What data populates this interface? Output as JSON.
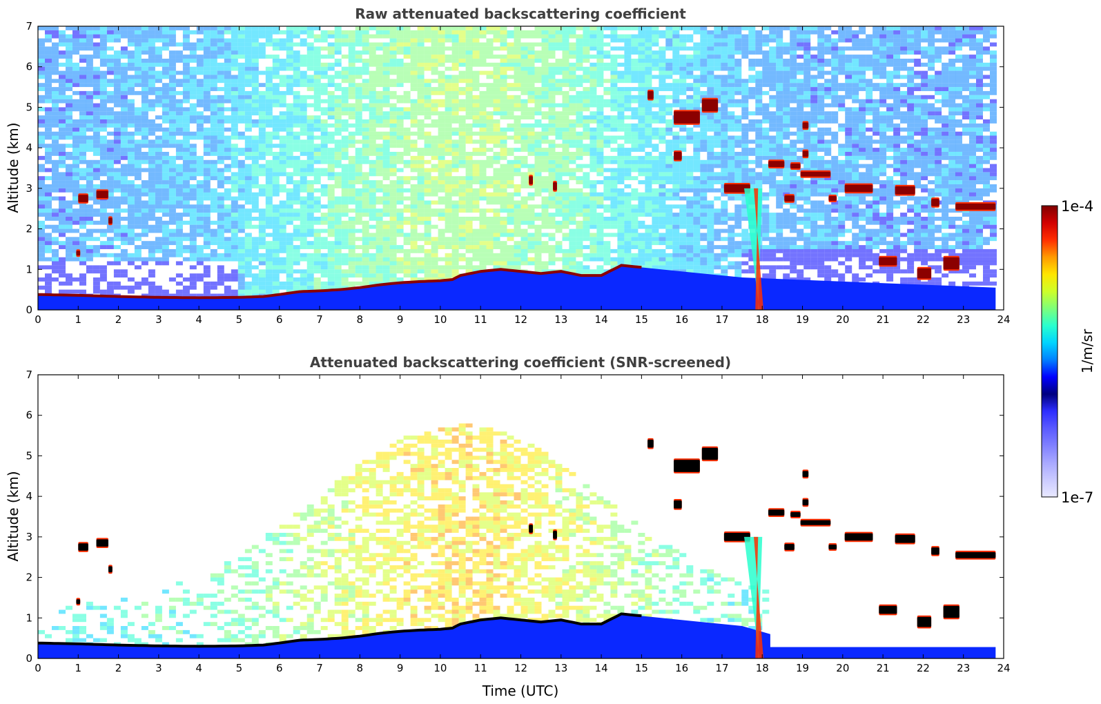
{
  "chart_data": [
    {
      "type": "heatmap",
      "title": "Raw attenuated backscattering coefficient",
      "xlabel": "",
      "ylabel": "Altitude (km)",
      "xlim": [
        0,
        24
      ],
      "ylim": [
        0,
        7
      ],
      "x_ticks": [
        "0",
        "1",
        "2",
        "3",
        "4",
        "5",
        "6",
        "7",
        "8",
        "9",
        "10",
        "11",
        "12",
        "13",
        "14",
        "15",
        "16",
        "17",
        "18",
        "19",
        "20",
        "21",
        "22",
        "23",
        "24"
      ],
      "y_ticks": [
        "0",
        "1",
        "2",
        "3",
        "4",
        "5",
        "6",
        "7"
      ],
      "screening": "none",
      "boundary_layer_top_km": [
        [
          0,
          0.38
        ],
        [
          1,
          0.36
        ],
        [
          2,
          0.33
        ],
        [
          3,
          0.31
        ],
        [
          4,
          0.3
        ],
        [
          5,
          0.31
        ],
        [
          5.6,
          0.33
        ],
        [
          6,
          0.38
        ],
        [
          6.5,
          0.45
        ],
        [
          7,
          0.47
        ],
        [
          7.5,
          0.5
        ],
        [
          8,
          0.55
        ],
        [
          8.5,
          0.62
        ],
        [
          9,
          0.67
        ],
        [
          9.5,
          0.7
        ],
        [
          10,
          0.72
        ],
        [
          10.3,
          0.75
        ],
        [
          10.5,
          0.85
        ],
        [
          11,
          0.95
        ],
        [
          11.5,
          1.0
        ],
        [
          12,
          0.95
        ],
        [
          12.5,
          0.9
        ],
        [
          13,
          0.95
        ],
        [
          13.5,
          0.85
        ],
        [
          14,
          0.85
        ],
        [
          14.5,
          1.1
        ],
        [
          15,
          1.05
        ]
      ],
      "cloud_layers": [
        {
          "x0": 1.0,
          "x1": 1.25,
          "alt_km": 2.75,
          "thickness_km": 0.18
        },
        {
          "x0": 1.45,
          "x1": 1.75,
          "alt_km": 2.85,
          "thickness_km": 0.18
        },
        {
          "x0": 1.75,
          "x1": 1.85,
          "alt_km": 2.2,
          "thickness_km": 0.15
        },
        {
          "x0": 0.95,
          "x1": 1.05,
          "alt_km": 1.4,
          "thickness_km": 0.12
        },
        {
          "x0": 12.2,
          "x1": 12.3,
          "alt_km": 3.2,
          "thickness_km": 0.2
        },
        {
          "x0": 12.8,
          "x1": 12.9,
          "alt_km": 3.05,
          "thickness_km": 0.2
        },
        {
          "x0": 15.15,
          "x1": 15.3,
          "alt_km": 5.3,
          "thickness_km": 0.2
        },
        {
          "x0": 15.8,
          "x1": 16.45,
          "alt_km": 4.75,
          "thickness_km": 0.3
        },
        {
          "x0": 16.5,
          "x1": 16.9,
          "alt_km": 5.05,
          "thickness_km": 0.3
        },
        {
          "x0": 15.8,
          "x1": 16.0,
          "alt_km": 3.8,
          "thickness_km": 0.2
        },
        {
          "x0": 17.05,
          "x1": 17.7,
          "alt_km": 3.0,
          "thickness_km": 0.2
        },
        {
          "x0": 18.15,
          "x1": 18.55,
          "alt_km": 3.6,
          "thickness_km": 0.15
        },
        {
          "x0": 18.7,
          "x1": 18.95,
          "alt_km": 3.55,
          "thickness_km": 0.12
        },
        {
          "x0": 18.95,
          "x1": 19.7,
          "alt_km": 3.35,
          "thickness_km": 0.12
        },
        {
          "x0": 19.0,
          "x1": 19.15,
          "alt_km": 4.55,
          "thickness_km": 0.15
        },
        {
          "x0": 19.0,
          "x1": 19.15,
          "alt_km": 3.85,
          "thickness_km": 0.15
        },
        {
          "x0": 18.55,
          "x1": 18.8,
          "alt_km": 2.75,
          "thickness_km": 0.15
        },
        {
          "x0": 19.65,
          "x1": 19.85,
          "alt_km": 2.75,
          "thickness_km": 0.12
        },
        {
          "x0": 20.05,
          "x1": 20.75,
          "alt_km": 3.0,
          "thickness_km": 0.18
        },
        {
          "x0": 21.3,
          "x1": 21.8,
          "alt_km": 2.95,
          "thickness_km": 0.2
        },
        {
          "x0": 22.2,
          "x1": 22.4,
          "alt_km": 2.65,
          "thickness_km": 0.18
        },
        {
          "x0": 22.8,
          "x1": 23.8,
          "alt_km": 2.55,
          "thickness_km": 0.15
        },
        {
          "x0": 20.9,
          "x1": 21.35,
          "alt_km": 1.2,
          "thickness_km": 0.2
        },
        {
          "x0": 21.85,
          "x1": 22.2,
          "alt_km": 0.9,
          "thickness_km": 0.25
        },
        {
          "x0": 22.5,
          "x1": 22.9,
          "alt_km": 1.15,
          "thickness_km": 0.3
        }
      ],
      "precipitation_shaft": {
        "x0": 17.55,
        "x1": 18.0,
        "from_alt_km": 3.0
      }
    },
    {
      "type": "heatmap",
      "title": "Attenuated backscattering coefficient (SNR-screened)",
      "xlabel": "Time (UTC)",
      "ylabel": "Altitude (km)",
      "xlim": [
        0,
        24
      ],
      "ylim": [
        0,
        7
      ],
      "x_ticks": [
        "0",
        "1",
        "2",
        "3",
        "4",
        "5",
        "6",
        "7",
        "8",
        "9",
        "10",
        "11",
        "12",
        "13",
        "14",
        "15",
        "16",
        "17",
        "18",
        "19",
        "20",
        "21",
        "22",
        "23",
        "24"
      ],
      "y_ticks": [
        "0",
        "1",
        "2",
        "3",
        "4",
        "5",
        "6",
        "7"
      ],
      "screening": "SNR",
      "low_snr_cutoff_km_after_18h": 0.28
    }
  ],
  "colorbar": {
    "max_label": "1e-4",
    "min_label": "1e-7",
    "unit_label": "1/m/sr",
    "scale": "log",
    "colormap": [
      "#00007f",
      "#0000ff",
      "#0080ff",
      "#00d4ff",
      "#29ffce",
      "#7dff7a",
      "#ceff29",
      "#ffe600",
      "#ff9a00",
      "#ff2e00",
      "#d20000",
      "#800000"
    ],
    "below_min_colors": [
      "#e8e8ff",
      "#cacaff",
      "#a8a8ff",
      "#8080ff",
      "#5a5aff",
      "#2e2eff"
    ]
  },
  "colors": {
    "frame": "#000000",
    "title_text": "#404040",
    "near_surface": "#0a28ff",
    "cloud_core": "#8b0000",
    "cloud_core_screened": "#000000"
  }
}
